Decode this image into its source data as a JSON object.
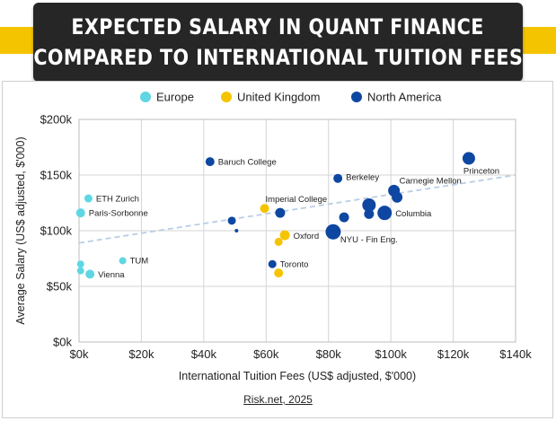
{
  "title": {
    "line1": "EXPECTED SALARY IN QUANT FINANCE",
    "line2": "COMPARED TO INTERNATIONAL TUITION FEES"
  },
  "source": "Risk.net, 2025",
  "chart_data": {
    "type": "scatter",
    "xlabel": "International Tuition Fees (US$ adjusted, $'000)",
    "ylabel": "Average Salary (US$ adjusted, $'000)",
    "xlim": [
      0,
      140
    ],
    "ylim": [
      0,
      200
    ],
    "xticks": [
      "$0k",
      "$20k",
      "$40k",
      "$60k",
      "$80k",
      "$100k",
      "$120k",
      "$140k"
    ],
    "yticks": [
      "$0k",
      "$50k",
      "$100k",
      "$150k",
      "$200k"
    ],
    "grid": true,
    "legend_position": "top",
    "trendline": {
      "from": [
        0,
        89
      ],
      "to": [
        140,
        150
      ]
    },
    "colors": {
      "Europe": "#5fd7e3",
      "United Kingdom": "#f5c400",
      "North America": "#0d47a1"
    },
    "series": [
      {
        "name": "Europe",
        "points": [
          {
            "x": 3,
            "y": 129,
            "size": 4.5,
            "label": "ETH Zurich"
          },
          {
            "x": 0.5,
            "y": 116,
            "size": 5,
            "label": "Paris-Sorbonne"
          },
          {
            "x": 14,
            "y": 73,
            "size": 4,
            "label": "TUM"
          },
          {
            "x": 0.5,
            "y": 70,
            "size": 4
          },
          {
            "x": 0.5,
            "y": 64,
            "size": 4
          },
          {
            "x": 3.5,
            "y": 61,
            "size": 5,
            "label": "Vienna"
          }
        ]
      },
      {
        "name": "United Kingdom",
        "points": [
          {
            "x": 59.5,
            "y": 120,
            "size": 5,
            "label": "Imperial College"
          },
          {
            "x": 66,
            "y": 96,
            "size": 5.5,
            "label": "Oxford"
          },
          {
            "x": 64,
            "y": 90,
            "size": 4.5
          },
          {
            "x": 64,
            "y": 62,
            "size": 5
          }
        ]
      },
      {
        "name": "North America",
        "points": [
          {
            "x": 42,
            "y": 162,
            "size": 5,
            "label": "Baruch College"
          },
          {
            "x": 83,
            "y": 147,
            "size": 5,
            "label": "Berkeley"
          },
          {
            "x": 125,
            "y": 165,
            "size": 7,
            "label": "Princeton"
          },
          {
            "x": 101,
            "y": 136,
            "size": 6.5,
            "label": "Carnegie Mellon"
          },
          {
            "x": 102,
            "y": 130,
            "size": 6
          },
          {
            "x": 93,
            "y": 123,
            "size": 7.5
          },
          {
            "x": 98,
            "y": 116,
            "size": 8,
            "label": "Columbia"
          },
          {
            "x": 93,
            "y": 115,
            "size": 5.5
          },
          {
            "x": 85,
            "y": 112,
            "size": 5.5
          },
          {
            "x": 64.5,
            "y": 116,
            "size": 5.5
          },
          {
            "x": 49,
            "y": 109,
            "size": 4.5
          },
          {
            "x": 50.5,
            "y": 100,
            "size": 2
          },
          {
            "x": 81.5,
            "y": 99,
            "size": 8.5,
            "label": "NYU - Fin Eng."
          },
          {
            "x": 62,
            "y": 70,
            "size": 4.5,
            "label": "Toronto"
          }
        ]
      }
    ]
  }
}
